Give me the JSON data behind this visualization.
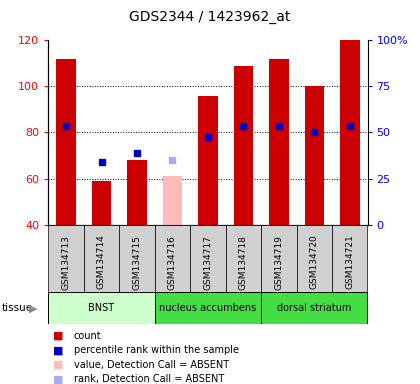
{
  "title": "GDS2344 / 1423962_at",
  "samples": [
    "GSM134713",
    "GSM134714",
    "GSM134715",
    "GSM134716",
    "GSM134717",
    "GSM134718",
    "GSM134719",
    "GSM134720",
    "GSM134721"
  ],
  "bar_values": [
    112,
    59,
    68,
    null,
    96,
    109,
    112,
    100,
    120
  ],
  "bar_absent_values": [
    null,
    null,
    null,
    61,
    null,
    null,
    null,
    null,
    null
  ],
  "rank_values": [
    83,
    67,
    71,
    null,
    78,
    83,
    83,
    80,
    83
  ],
  "rank_absent_values": [
    null,
    null,
    null,
    68,
    null,
    null,
    null,
    null,
    null
  ],
  "bar_color": "#cc0000",
  "bar_absent_color": "#ffbbbb",
  "rank_color": "#0000cc",
  "rank_absent_color": "#aaaaee",
  "ylim_left": [
    40,
    120
  ],
  "ylim_right": [
    0,
    100
  ],
  "tissue_groups": [
    {
      "label": "BNST",
      "start": 0,
      "end": 3,
      "color": "#ccffcc"
    },
    {
      "label": "nucleus accumbens",
      "start": 3,
      "end": 6,
      "color": "#44dd44"
    },
    {
      "label": "dorsal striatum",
      "start": 6,
      "end": 9,
      "color": "#44dd44"
    }
  ],
  "legend_items": [
    {
      "label": "count",
      "color": "#cc0000"
    },
    {
      "label": "percentile rank within the sample",
      "color": "#0000cc"
    },
    {
      "label": "value, Detection Call = ABSENT",
      "color": "#ffbbbb"
    },
    {
      "label": "rank, Detection Call = ABSENT",
      "color": "#aaaaee"
    }
  ],
  "right_yticks": [
    0,
    25,
    50,
    75,
    100
  ],
  "right_yticklabels": [
    "0",
    "25",
    "50",
    "75",
    "100%"
  ],
  "left_yticks": [
    40,
    60,
    80,
    100,
    120
  ],
  "grid_values": [
    60,
    80,
    100
  ],
  "bar_width": 0.55
}
